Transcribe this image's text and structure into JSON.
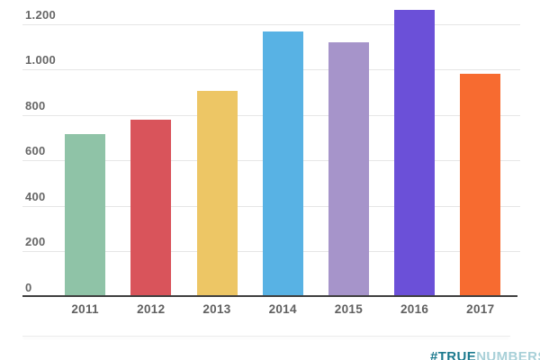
{
  "chart_data": {
    "type": "bar",
    "title": "",
    "xlabel": "",
    "ylabel": "",
    "categories": [
      "2011",
      "2012",
      "2013",
      "2014",
      "2015",
      "2016",
      "2017"
    ],
    "values": [
      715,
      780,
      905,
      1165,
      1120,
      1260,
      980
    ],
    "bar_colors": [
      "#8fc3a7",
      "#d9545b",
      "#edc665",
      "#58b2e4",
      "#a694ca",
      "#6b50d8",
      "#f76b30"
    ],
    "yticks": [
      0,
      200,
      400,
      600,
      800,
      1000,
      1200
    ],
    "ytick_labels": [
      "0",
      "200",
      "400",
      "600",
      "800",
      "1.000",
      "1.200"
    ],
    "ylim": [
      0,
      1200
    ],
    "grid": true,
    "legend": "none",
    "gridline_color": "#e6e6e6",
    "axis_color": "#404040",
    "tick_label_color": "#666666"
  },
  "watermark": {
    "prefix": "#TRUE",
    "suffix": "NUMBERS",
    "prefix_color": "#1c7a8e",
    "suffix_color": "#a8d0d8"
  }
}
